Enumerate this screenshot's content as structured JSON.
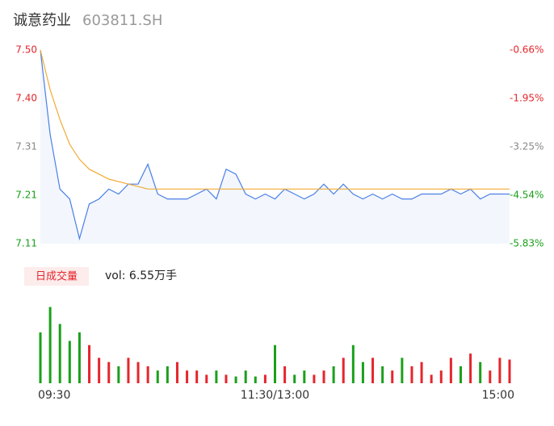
{
  "header": {
    "name": "诚意药业",
    "code": "603811.SH"
  },
  "chart_data": [
    {
      "type": "line",
      "x": [
        0,
        5,
        10,
        15,
        20,
        25,
        30,
        35,
        40,
        45,
        50,
        55,
        60,
        65,
        70,
        75,
        80,
        85,
        90,
        95,
        100,
        105,
        110,
        115,
        120,
        125,
        130,
        135,
        140,
        145,
        150,
        155,
        160,
        165,
        170,
        175,
        180,
        185,
        190,
        195,
        200,
        205,
        210,
        215,
        220,
        225,
        230,
        235,
        240
      ],
      "xlim": [
        0,
        240
      ],
      "ylim": [
        7.11,
        7.5
      ],
      "yticks": [
        7.11,
        {
          "value": 7.2075,
          "label": "7.21"
        },
        {
          "value": 7.305,
          "label": "7.31"
        },
        {
          "value": 7.4025,
          "label": "7.40"
        },
        {
          "value": 7.5,
          "label": "7.50"
        }
      ],
      "ytick_colors": [
        "#1aa01a",
        "#1aa01a",
        "#888888",
        "#e5262c",
        "#e5262c"
      ],
      "y2lim": [
        -5.83,
        -0.66
      ],
      "y2ticks": [
        {
          "value": -5.83,
          "label": "-5.83%"
        },
        {
          "value": -4.5375,
          "label": "-4.54%"
        },
        {
          "value": -3.245,
          "label": "-3.25%"
        },
        {
          "value": -1.9525,
          "label": "-1.95%"
        },
        {
          "value": -0.66,
          "label": "-0.66%"
        }
      ],
      "area_color": "#f3f6fd",
      "series": [
        {
          "color": "#4a7fe6",
          "values": [
            7.5,
            7.33,
            7.22,
            7.2,
            7.12,
            7.19,
            7.2,
            7.22,
            7.21,
            7.23,
            7.23,
            7.27,
            7.21,
            7.2,
            7.2,
            7.2,
            7.21,
            7.22,
            7.2,
            7.26,
            7.25,
            7.21,
            7.2,
            7.21,
            7.2,
            7.22,
            7.21,
            7.2,
            7.21,
            7.23,
            7.21,
            7.23,
            7.21,
            7.2,
            7.21,
            7.2,
            7.21,
            7.2,
            7.2,
            7.21,
            7.21,
            7.21,
            7.22,
            7.21,
            7.22,
            7.2,
            7.21,
            7.21,
            7.21
          ]
        },
        {
          "color": "#f2aa33",
          "values": [
            7.5,
            7.42,
            7.36,
            7.31,
            7.28,
            7.26,
            7.25,
            7.24,
            7.235,
            7.23,
            7.225,
            7.22,
            7.22,
            7.22,
            7.22,
            7.22,
            7.22,
            7.22,
            7.22,
            7.22,
            7.22,
            7.22,
            7.22,
            7.22,
            7.22,
            7.22,
            7.22,
            7.22,
            7.22,
            7.22,
            7.22,
            7.22,
            7.22,
            7.22,
            7.22,
            7.22,
            7.22,
            7.22,
            7.22,
            7.22,
            7.22,
            7.22,
            7.22,
            7.22,
            7.22,
            7.22,
            7.22,
            7.22,
            7.22
          ]
        }
      ]
    },
    {
      "type": "bar",
      "label": "日成交量",
      "summary": "vol: 6.55万手",
      "x": [
        0,
        5,
        10,
        15,
        20,
        25,
        30,
        35,
        40,
        45,
        50,
        55,
        60,
        65,
        70,
        75,
        80,
        85,
        90,
        95,
        100,
        105,
        110,
        115,
        120,
        125,
        130,
        135,
        140,
        145,
        150,
        155,
        160,
        165,
        170,
        175,
        180,
        185,
        190,
        195,
        200,
        205,
        210,
        215,
        220,
        225,
        230,
        235,
        240
      ],
      "xlim": [
        0,
        240
      ],
      "xticks": [
        {
          "value": 0,
          "label": "09:30"
        },
        {
          "value": 120,
          "label": "11:30/13:00"
        },
        {
          "value": 240,
          "label": "15:00"
        }
      ],
      "ylim": [
        0,
        1000
      ],
      "up_color": "#e5262c",
      "down_color": "#1aa01a",
      "values": [
        600,
        900,
        700,
        500,
        600,
        450,
        300,
        250,
        200,
        300,
        250,
        200,
        150,
        200,
        250,
        150,
        150,
        100,
        150,
        100,
        80,
        150,
        80,
        100,
        450,
        200,
        100,
        150,
        100,
        150,
        200,
        300,
        450,
        250,
        300,
        200,
        150,
        300,
        200,
        250,
        100,
        150,
        300,
        200,
        350,
        250,
        150,
        300,
        280
      ]
    }
  ]
}
